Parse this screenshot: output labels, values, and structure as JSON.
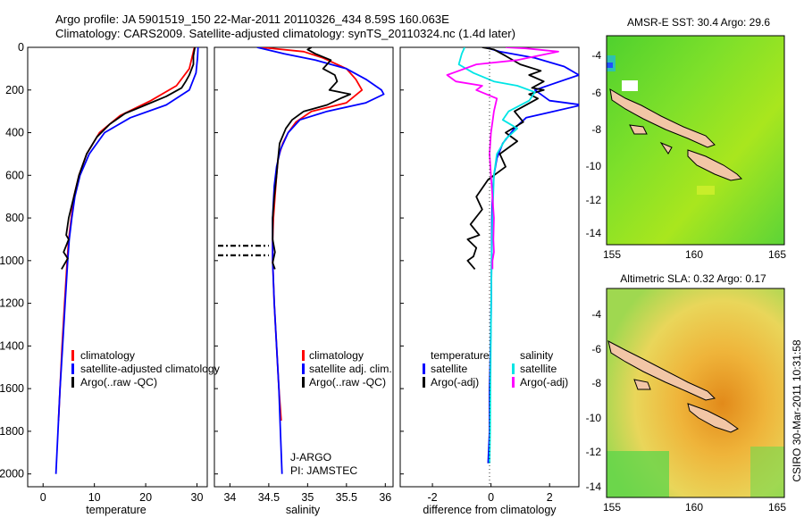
{
  "header": {
    "title_line1": "Argo profile: JA 5901519_150 22-Mar-2011 20110326_434 8.59S 160.063E",
    "title_line2": "Climatology: CARS2009. Satellite-adjusted climatology: synTS_20110324.nc (1.4d later)"
  },
  "side_label": "CSIRO 30-Mar-2011 10:31:58",
  "colors": {
    "climatology": "#ff0000",
    "satellite": "#0000ff",
    "argo": "#000000",
    "argo_adj_sal": "#ff00ff",
    "satellite_sal": "#00e5e5"
  },
  "chart_data": [
    {
      "type": "line",
      "id": "temperature",
      "xlabel": "temperature",
      "ylabel": "",
      "xlim": [
        -3,
        32
      ],
      "ylim": [
        0,
        2060
      ],
      "xticks": [
        0,
        10,
        20,
        30
      ],
      "yticks": [
        0,
        200,
        400,
        600,
        800,
        1000,
        1200,
        1400,
        1600,
        1800,
        2000
      ],
      "legend": [
        "climatology",
        "satellite-adjusted climatology",
        "Argo(..raw -QC)"
      ],
      "series": [
        {
          "name": "climatology",
          "color": "#ff0000",
          "points": [
            [
              29.5,
              0
            ],
            [
              29.2,
              30
            ],
            [
              28.5,
              100
            ],
            [
              26,
              180
            ],
            [
              21,
              250
            ],
            [
              15,
              320
            ],
            [
              11,
              400
            ],
            [
              8.5,
              500
            ],
            [
              7,
              600
            ],
            [
              6,
              700
            ],
            [
              5.5,
              800
            ],
            [
              5,
              900
            ],
            [
              4.7,
              1000
            ],
            [
              4.2,
              1200
            ],
            [
              3.7,
              1400
            ],
            [
              3.3,
              1600
            ],
            [
              3,
              1750
            ]
          ]
        },
        {
          "name": "satellite-adjusted climatology",
          "color": "#0000ff",
          "points": [
            [
              30.2,
              0
            ],
            [
              30.1,
              50
            ],
            [
              29.8,
              120
            ],
            [
              28.5,
              200
            ],
            [
              24,
              270
            ],
            [
              17,
              330
            ],
            [
              12,
              400
            ],
            [
              9,
              500
            ],
            [
              7.2,
              600
            ],
            [
              6.2,
              700
            ],
            [
              5.6,
              800
            ],
            [
              5.1,
              900
            ],
            [
              4.8,
              1000
            ],
            [
              4.3,
              1200
            ],
            [
              3.8,
              1400
            ],
            [
              3.3,
              1600
            ],
            [
              2.9,
              1800
            ],
            [
              2.5,
              2000
            ]
          ]
        },
        {
          "name": "Argo(..raw -QC)",
          "color": "#000000",
          "points": [
            [
              29.6,
              0
            ],
            [
              29.3,
              40
            ],
            [
              29.3,
              80
            ],
            [
              28.5,
              130
            ],
            [
              27.8,
              160
            ],
            [
              27,
              190
            ],
            [
              24,
              230
            ],
            [
              20,
              270
            ],
            [
              16,
              310
            ],
            [
              13,
              360
            ],
            [
              10.5,
              420
            ],
            [
              8.5,
              500
            ],
            [
              7,
              600
            ],
            [
              6,
              700
            ],
            [
              5,
              800
            ],
            [
              4.5,
              880
            ],
            [
              5,
              900
            ],
            [
              4,
              960
            ],
            [
              4.8,
              990
            ],
            [
              3.6,
              1040
            ]
          ]
        }
      ]
    },
    {
      "type": "line",
      "id": "salinity",
      "xlabel": "salinity",
      "ylabel": "",
      "xlim": [
        33.8,
        36.1
      ],
      "ylim": [
        0,
        2060
      ],
      "xticks": [
        34,
        34.5,
        35,
        35.5,
        36
      ],
      "xtick_labels": [
        "34",
        "34.5",
        "35",
        "35.5",
        "36"
      ],
      "legend": [
        "climatology",
        "satellite adj. clim.",
        "Argo(..raw -QC)"
      ],
      "annotation_lines": [
        "J-ARGO",
        "PI: JAMSTEC"
      ],
      "series": [
        {
          "name": "climatology",
          "color": "#ff0000",
          "points": [
            [
              34.4,
              0
            ],
            [
              34.95,
              20
            ],
            [
              35.2,
              50
            ],
            [
              35.5,
              100
            ],
            [
              35.62,
              150
            ],
            [
              35.7,
              200
            ],
            [
              35.5,
              260
            ],
            [
              35.05,
              300
            ],
            [
              34.85,
              350
            ],
            [
              34.75,
              400
            ],
            [
              34.68,
              450
            ],
            [
              34.62,
              520
            ],
            [
              34.6,
              600
            ],
            [
              34.58,
              700
            ],
            [
              34.56,
              800
            ],
            [
              34.55,
              900
            ],
            [
              34.55,
              1000
            ],
            [
              34.57,
              1200
            ],
            [
              34.6,
              1400
            ],
            [
              34.63,
              1600
            ],
            [
              34.66,
              1750
            ]
          ]
        },
        {
          "name": "satellite adj. clim.",
          "color": "#0000ff",
          "points": [
            [
              34.35,
              0
            ],
            [
              34.7,
              30
            ],
            [
              35.1,
              60
            ],
            [
              35.5,
              100
            ],
            [
              35.75,
              150
            ],
            [
              35.95,
              200
            ],
            [
              35.98,
              220
            ],
            [
              35.75,
              260
            ],
            [
              35.25,
              300
            ],
            [
              34.9,
              340
            ],
            [
              34.75,
              400
            ],
            [
              34.65,
              480
            ],
            [
              34.6,
              560
            ],
            [
              34.57,
              650
            ],
            [
              34.55,
              800
            ],
            [
              34.55,
              1000
            ],
            [
              34.57,
              1200
            ],
            [
              34.6,
              1400
            ],
            [
              34.63,
              1600
            ],
            [
              34.65,
              1800
            ],
            [
              34.67,
              2000
            ]
          ]
        },
        {
          "name": "Argo(..raw -QC)",
          "color": "#000000",
          "points": [
            [
              35.05,
              0
            ],
            [
              35.0,
              10
            ],
            [
              35.1,
              30
            ],
            [
              35.3,
              60
            ],
            [
              35.2,
              100
            ],
            [
              35.35,
              130
            ],
            [
              35.38,
              160
            ],
            [
              35.28,
              200
            ],
            [
              35.55,
              220
            ],
            [
              35.42,
              240
            ],
            [
              35.25,
              270
            ],
            [
              34.95,
              300
            ],
            [
              34.8,
              340
            ],
            [
              34.72,
              380
            ],
            [
              34.64,
              450
            ],
            [
              34.62,
              520
            ],
            [
              34.6,
              600
            ],
            [
              34.57,
              700
            ],
            [
              34.55,
              800
            ],
            [
              34.55,
              900
            ],
            [
              34.58,
              960
            ],
            [
              34.55,
              1010
            ],
            [
              34.58,
              1040
            ]
          ]
        },
        {
          "name": "rejected-levels",
          "color": "#000000",
          "dash": true,
          "points": []
        }
      ],
      "dashed_markers": [
        {
          "y": 930,
          "x0": 33.8,
          "x1": 34.5
        },
        {
          "y": 975,
          "x0": 33.8,
          "x1": 34.5
        }
      ]
    },
    {
      "type": "line",
      "id": "difference",
      "xlabel": "difference from climatology",
      "ylabel": "",
      "xlim": [
        -3.1,
        3.0
      ],
      "ylim": [
        0,
        2060
      ],
      "xticks": [
        -2,
        0,
        2
      ],
      "legend_left_title": "temperature",
      "legend_right_title": "salinity",
      "legend_left": [
        "satellite",
        "Argo(-adj)"
      ],
      "legend_right": [
        "satellite",
        "Argo(-adj)"
      ],
      "series": [
        {
          "name": "temperature satellite",
          "color": "#0000ff",
          "points": [
            [
              -0.2,
              0
            ],
            [
              0.3,
              20
            ],
            [
              1.5,
              50
            ],
            [
              2.5,
              90
            ],
            [
              3.0,
              130
            ],
            [
              1.5,
              200
            ],
            [
              2.0,
              250
            ],
            [
              3.1,
              270
            ],
            [
              1.2,
              330
            ],
            [
              0.8,
              380
            ],
            [
              0.4,
              450
            ],
            [
              0.2,
              520
            ],
            [
              0.1,
              600
            ],
            [
              0.05,
              700
            ],
            [
              0.03,
              800
            ],
            [
              0.02,
              1000
            ],
            [
              0.0,
              1300
            ],
            [
              -0.05,
              1600
            ],
            [
              -0.05,
              1800
            ],
            [
              -0.1,
              1950
            ]
          ]
        },
        {
          "name": "temperature Argo(-adj)",
          "color": "#000000",
          "points": [
            [
              -0.3,
              0
            ],
            [
              0.1,
              10
            ],
            [
              0.5,
              40
            ],
            [
              1,
              80
            ],
            [
              1.7,
              110
            ],
            [
              1.3,
              130
            ],
            [
              1.8,
              160
            ],
            [
              1.4,
              190
            ],
            [
              1.8,
              200
            ],
            [
              1.3,
              220
            ],
            [
              1.6,
              240
            ],
            [
              0.8,
              300
            ],
            [
              1.1,
              350
            ],
            [
              0.5,
              400
            ],
            [
              0.9,
              440
            ],
            [
              0.3,
              500
            ],
            [
              0.5,
              560
            ],
            [
              -0.1,
              620
            ],
            [
              -0.5,
              700
            ],
            [
              -0.3,
              760
            ],
            [
              -0.7,
              830
            ],
            [
              -0.4,
              880
            ],
            [
              -0.8,
              900
            ],
            [
              -0.5,
              940
            ],
            [
              -0.6,
              980
            ],
            [
              -0.8,
              1000
            ],
            [
              -0.55,
              1040
            ]
          ]
        },
        {
          "name": "salinity satellite",
          "color": "#00e5e5",
          "points": [
            [
              -0.9,
              0
            ],
            [
              -1.0,
              30
            ],
            [
              -1.1,
              80
            ],
            [
              -0.6,
              120
            ],
            [
              0.1,
              160
            ],
            [
              0.9,
              180
            ],
            [
              1.5,
              210
            ],
            [
              1.3,
              250
            ],
            [
              0.6,
              300
            ],
            [
              0.4,
              340
            ],
            [
              0.9,
              380
            ],
            [
              0.5,
              430
            ],
            [
              0.2,
              500
            ],
            [
              0.1,
              600
            ],
            [
              0.05,
              800
            ],
            [
              0.02,
              1000
            ],
            [
              0.0,
              1300
            ],
            [
              -0.02,
              1600
            ],
            [
              -0.03,
              1800
            ],
            [
              -0.05,
              1950
            ]
          ]
        },
        {
          "name": "salinity Argo(-adj)",
          "color": "#ff00ff",
          "points": [
            [
              0.5,
              0
            ],
            [
              1.2,
              5
            ],
            [
              2.3,
              20
            ],
            [
              0.9,
              60
            ],
            [
              -0.5,
              80
            ],
            [
              -1.5,
              130
            ],
            [
              -1.2,
              160
            ],
            [
              -0.3,
              180
            ],
            [
              -0.5,
              200
            ],
            [
              0.2,
              240
            ],
            [
              0.1,
              300
            ],
            [
              0.05,
              350
            ],
            [
              0,
              400
            ],
            [
              -0.05,
              500
            ],
            [
              0,
              600
            ],
            [
              0.1,
              800
            ],
            [
              0.08,
              900
            ],
            [
              0.1,
              960
            ],
            [
              0.05,
              1000
            ],
            [
              0.05,
              1040
            ]
          ]
        }
      ]
    }
  ],
  "maps": [
    {
      "title": "AMSR-E SST: 30.4 Argo: 29.6",
      "xticks": [
        "155",
        "160",
        "165"
      ],
      "yticks": [
        "-4",
        "-6",
        "-8",
        "-10",
        "-12",
        "-14"
      ],
      "kind": "sst"
    },
    {
      "title": "Altimetric SLA: 0.32 Argo: 0.17",
      "xticks": [
        "155",
        "160",
        "165"
      ],
      "yticks": [
        "-4",
        "-6",
        "-8",
        "-10",
        "-12",
        "-14"
      ],
      "kind": "sla"
    }
  ]
}
